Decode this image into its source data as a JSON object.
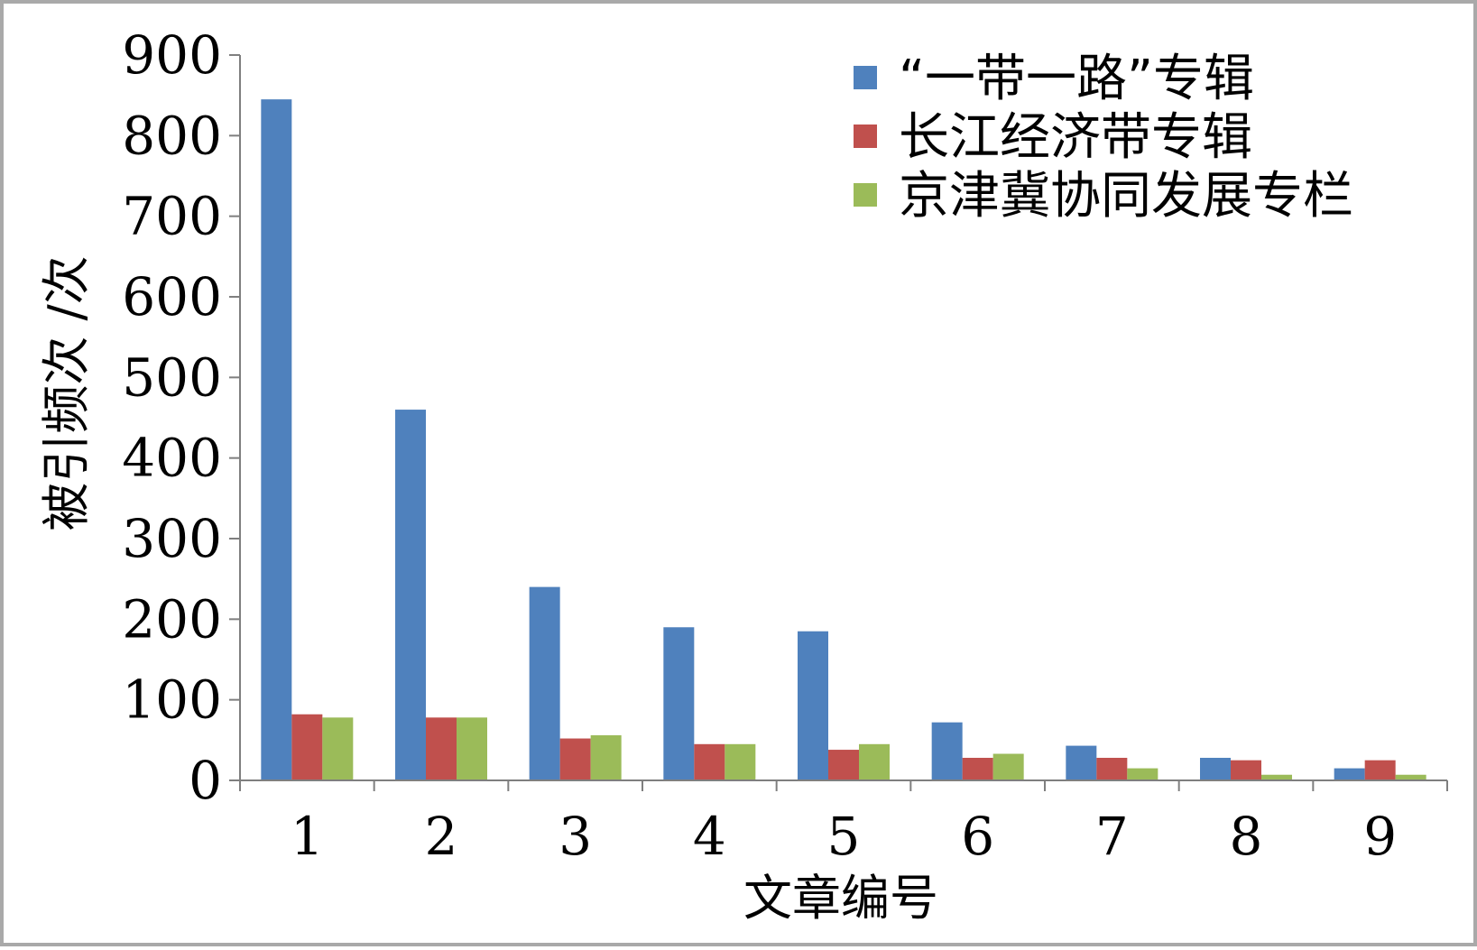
{
  "chart_data": {
    "type": "bar",
    "categories": [
      "1",
      "2",
      "3",
      "4",
      "5",
      "6",
      "7",
      "8",
      "9"
    ],
    "series": [
      {
        "name": "“一带一路”专辑",
        "color": "#4f81bd",
        "values": [
          845,
          460,
          240,
          190,
          185,
          72,
          43,
          28,
          15
        ]
      },
      {
        "name": "长江经济带专辑",
        "color": "#c0504d",
        "values": [
          82,
          78,
          52,
          45,
          38,
          28,
          28,
          25,
          25
        ]
      },
      {
        "name": "京津冀协同发展专栏",
        "color": "#9bbb59",
        "values": [
          78,
          78,
          56,
          45,
          45,
          33,
          15,
          7,
          7
        ]
      }
    ],
    "xlabel": "文章编号",
    "ylabel": "被引频次 /次",
    "ylim": [
      0,
      900
    ],
    "yticks": [
      "0",
      "100",
      "200",
      "300",
      "400",
      "500",
      "600",
      "700",
      "800",
      "900"
    ],
    "grid": false,
    "legend_position": "top-right"
  }
}
